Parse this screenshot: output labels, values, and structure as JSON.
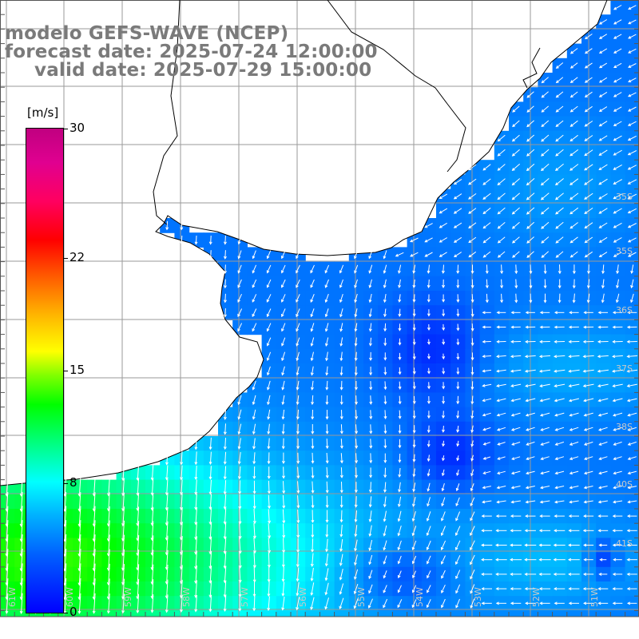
{
  "title": {
    "model": "modelo GEFS-WAVE (NCEP)",
    "forecast": "forecast date: 2025-07-24 12:00:00",
    "valid": "valid date: 2025-07-29 15:00:00"
  },
  "colorbar": {
    "unit": "[m/s]",
    "ticks": [
      {
        "label": "30",
        "value": 30
      },
      {
        "label": "22",
        "value": 22
      },
      {
        "label": "15",
        "value": 15
      },
      {
        "label": "8",
        "value": 8
      },
      {
        "label": "0",
        "value": 0
      }
    ],
    "vmin": 0,
    "vmax": 30
  },
  "map": {
    "ocean_color": "#1560f0",
    "land_color": "#ffffff",
    "grid_color": "#9a9a9a",
    "coast_color": "#000000",
    "lat_labels": [
      "35S",
      "35S",
      "36S",
      "37S",
      "38S",
      "40S",
      "41S"
    ],
    "lon_labels": [
      "61W",
      "60W",
      "59W",
      "58W",
      "57W",
      "56W",
      "55W",
      "54W",
      "53W",
      "52W",
      "51W"
    ]
  }
}
